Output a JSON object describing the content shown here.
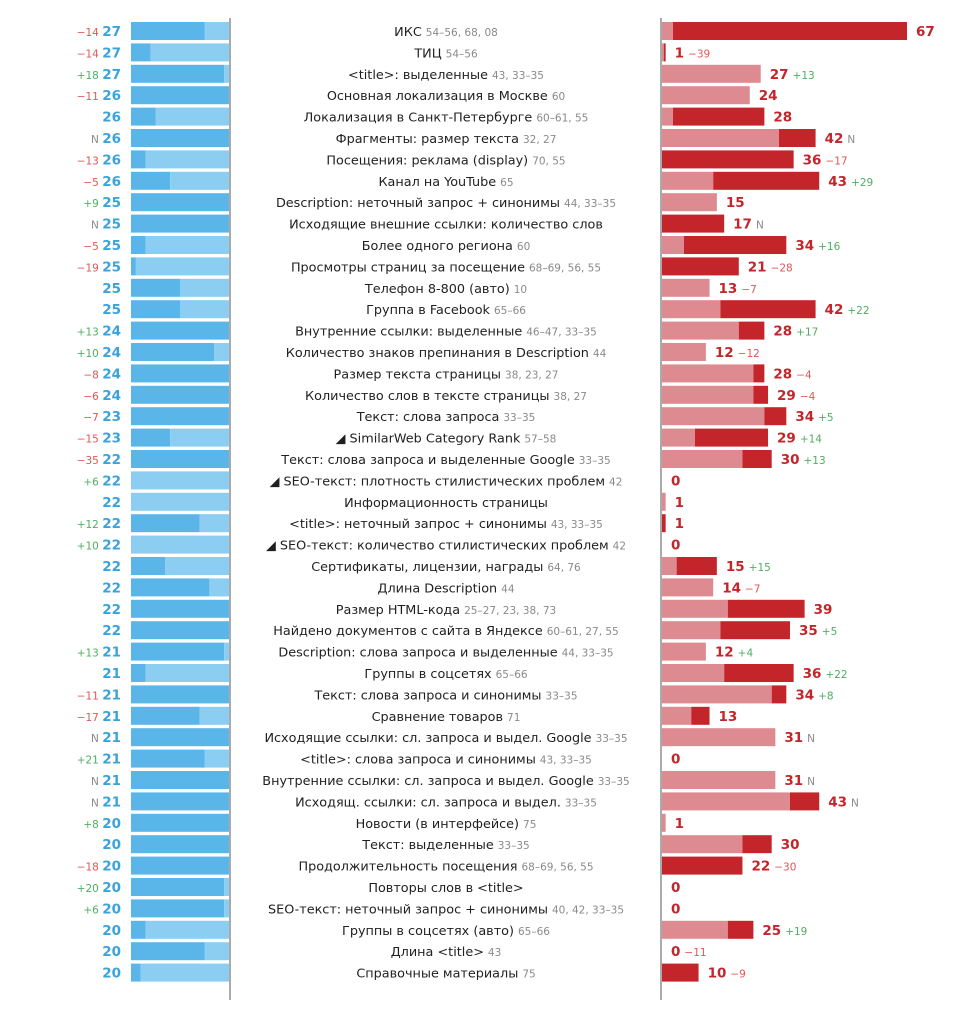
{
  "chart_data": {
    "type": "bar",
    "title": "",
    "left_scale_max": 27,
    "right_scale_max": 67,
    "colors": {
      "left_dark": "#5ab6e9",
      "left_light": "#8ccdf2",
      "left_pale": "#d3ebf8",
      "right_dark": "#c4252b",
      "right_light": "#de8a91",
      "right_pale": "#f1d4d6",
      "axis": "#555555"
    },
    "rows": [
      {
        "label": "ИКС",
        "refs": "54–56, 68, 08",
        "left_value": "27",
        "left_change": "−14",
        "left_change_sign": "neg",
        "right_value": "67",
        "right_change": "",
        "right_change_sign": "",
        "left_dark_frac": 0.75,
        "left_light_frac": 0.25,
        "right_light": 3,
        "right_dark": 64
      },
      {
        "label": "ТИЦ",
        "refs": "54–56",
        "left_value": "27",
        "left_change": "−14",
        "left_change_sign": "neg",
        "right_value": "1",
        "right_change": "−39",
        "right_change_sign": "neg",
        "left_dark_frac": 0.2,
        "left_light_frac": 0.8,
        "right_light": 0.5,
        "right_dark": 0.5
      },
      {
        "label": "<title>: выделенные",
        "refs": "43, 33–35",
        "left_value": "27",
        "left_change": "+18",
        "left_change_sign": "pos",
        "right_value": "27",
        "right_change": "+13",
        "right_change_sign": "pos",
        "left_dark_frac": 0.95,
        "left_light_frac": 0.05,
        "right_light": 27,
        "right_dark": 0
      },
      {
        "label": "Основная локализация в Москве",
        "refs": "60",
        "left_value": "26",
        "left_change": "−11",
        "left_change_sign": "neg",
        "right_value": "24",
        "right_change": "",
        "right_change_sign": "",
        "left_dark_frac": 1,
        "left_light_frac": 0,
        "right_light": 24,
        "right_dark": 0
      },
      {
        "label": "Локализация в Санкт-Петербурге",
        "refs": "60–61, 55",
        "left_value": "26",
        "left_change": "",
        "left_change_sign": "",
        "right_value": "28",
        "right_change": "",
        "right_change_sign": "",
        "left_dark_frac": 0.25,
        "left_light_frac": 0.75,
        "right_light": 3,
        "right_dark": 25
      },
      {
        "label": "Фрагменты: размер текста",
        "refs": "32, 27",
        "left_value": "26",
        "left_change": "N",
        "left_change_sign": "neu",
        "right_value": "42",
        "right_change": "N",
        "right_change_sign": "neu",
        "left_dark_frac": 1,
        "left_light_frac": 0,
        "right_light": 32,
        "right_dark": 10
      },
      {
        "label": "Посещения: реклама (display)",
        "refs": "70, 55",
        "left_value": "26",
        "left_change": "−13",
        "left_change_sign": "neg",
        "right_value": "36",
        "right_change": "−17",
        "right_change_sign": "neg",
        "left_dark_frac": 0.15,
        "left_light_frac": 0.85,
        "right_light": 0,
        "right_dark": 36
      },
      {
        "label": "Канал на YouTube",
        "refs": "65",
        "left_value": "26",
        "left_change": "−5",
        "left_change_sign": "neg",
        "right_value": "43",
        "right_change": "+29",
        "right_change_sign": "pos",
        "left_dark_frac": 0.4,
        "left_light_frac": 0.6,
        "right_light": 14,
        "right_dark": 29
      },
      {
        "label": "Description: неточный запрос + синонимы",
        "refs": "44, 33–35",
        "left_value": "25",
        "left_change": "+9",
        "left_change_sign": "pos",
        "right_value": "15",
        "right_change": "",
        "right_change_sign": "",
        "left_dark_frac": 1,
        "left_light_frac": 0,
        "right_light": 15,
        "right_dark": 0
      },
      {
        "label": "Исходящие внешние ссылки: количество слов",
        "refs": "",
        "left_value": "25",
        "left_change": "N",
        "left_change_sign": "neu",
        "right_value": "17",
        "right_change": "N",
        "right_change_sign": "neu",
        "left_dark_frac": 1,
        "left_light_frac": 0,
        "right_light": 0,
        "right_dark": 17
      },
      {
        "label": "Более одного региона",
        "refs": "60",
        "left_value": "25",
        "left_change": "−5",
        "left_change_sign": "neg",
        "right_value": "34",
        "right_change": "+16",
        "right_change_sign": "pos",
        "left_dark_frac": 0.15,
        "left_light_frac": 0.85,
        "right_light": 6,
        "right_dark": 28
      },
      {
        "label": "Просмотры страниц за посещение",
        "refs": "68–69, 56, 55",
        "left_value": "25",
        "left_change": "−19",
        "left_change_sign": "neg",
        "right_value": "21",
        "right_change": "−28",
        "right_change_sign": "neg",
        "left_dark_frac": 0.05,
        "left_light_frac": 0.95,
        "right_light": 0,
        "right_dark": 21
      },
      {
        "label": "Телефон 8-800 (авто)",
        "refs": "10",
        "left_value": "25",
        "left_change": "",
        "left_change_sign": "",
        "right_value": "13",
        "right_change": "−7",
        "right_change_sign": "neg",
        "left_dark_frac": 0.5,
        "left_light_frac": 0.5,
        "right_light": 13,
        "right_dark": 0
      },
      {
        "label": "Группа в Facebook",
        "refs": "65–66",
        "left_value": "25",
        "left_change": "",
        "left_change_sign": "",
        "right_value": "42",
        "right_change": "+22",
        "right_change_sign": "pos",
        "left_dark_frac": 0.5,
        "left_light_frac": 0.5,
        "right_light": 16,
        "right_dark": 26
      },
      {
        "label": "Внутренние ссылки: выделенные",
        "refs": "46–47, 33–35",
        "left_value": "24",
        "left_change": "+13",
        "left_change_sign": "pos",
        "right_value": "28",
        "right_change": "+17",
        "right_change_sign": "pos",
        "left_dark_frac": 1,
        "left_light_frac": 0,
        "right_light": 21,
        "right_dark": 7
      },
      {
        "label": "Количество знаков препинания в Description",
        "refs": "44",
        "left_value": "24",
        "left_change": "+10",
        "left_change_sign": "pos",
        "right_value": "12",
        "right_change": "−12",
        "right_change_sign": "neg",
        "left_dark_frac": 0.85,
        "left_light_frac": 0.15,
        "right_light": 12,
        "right_dark": 0
      },
      {
        "label": "Размер текста страницы",
        "refs": "38, 23, 27",
        "left_value": "24",
        "left_change": "−8",
        "left_change_sign": "neg",
        "right_value": "28",
        "right_change": "−4",
        "right_change_sign": "neg",
        "left_dark_frac": 1,
        "left_light_frac": 0,
        "right_light": 25,
        "right_dark": 3
      },
      {
        "label": "Количество слов в тексте страницы",
        "refs": "38, 27",
        "left_value": "24",
        "left_change": "−6",
        "left_change_sign": "neg",
        "right_value": "29",
        "right_change": "−4",
        "right_change_sign": "neg",
        "left_dark_frac": 1,
        "left_light_frac": 0,
        "right_light": 25,
        "right_dark": 4
      },
      {
        "label": "Текст: слова запроса",
        "refs": "33–35",
        "left_value": "23",
        "left_change": "−7",
        "left_change_sign": "neg",
        "right_value": "34",
        "right_change": "+5",
        "right_change_sign": "pos",
        "left_dark_frac": 1,
        "left_light_frac": 0,
        "right_light": 28,
        "right_dark": 6
      },
      {
        "label": "◢ SimilarWeb Category Rank",
        "refs": "57–58",
        "left_value": "23",
        "left_change": "−15",
        "left_change_sign": "neg",
        "right_value": "29",
        "right_change": "+14",
        "right_change_sign": "pos",
        "left_dark_frac": 0.4,
        "left_light_frac": 0.6,
        "right_light": 9,
        "right_dark": 20
      },
      {
        "label": "Текст: слова запроса и выделенные Google",
        "refs": "33–35",
        "left_value": "22",
        "left_change": "−35",
        "left_change_sign": "neg",
        "right_value": "30",
        "right_change": "+13",
        "right_change_sign": "pos",
        "left_dark_frac": 1,
        "left_light_frac": 0,
        "right_light": 22,
        "right_dark": 8
      },
      {
        "label": "◢ SEO-текст: плотность стилистических проблем",
        "refs": "42",
        "left_value": "22",
        "left_change": "+6",
        "left_change_sign": "pos",
        "right_value": "0",
        "right_change": "",
        "right_change_sign": "",
        "left_dark_frac": 0,
        "left_light_frac": 1,
        "right_light": 0,
        "right_dark": 0
      },
      {
        "label": "Информационность страницы",
        "refs": "",
        "left_value": "22",
        "left_change": "",
        "left_change_sign": "",
        "right_value": "1",
        "right_change": "",
        "right_change_sign": "",
        "left_dark_frac": 0,
        "left_light_frac": 1,
        "right_light": 1,
        "right_dark": 0
      },
      {
        "label": "<title>: неточный запрос + синонимы",
        "refs": "43, 33–35",
        "left_value": "22",
        "left_change": "+12",
        "left_change_sign": "pos",
        "right_value": "1",
        "right_change": "",
        "right_change_sign": "",
        "left_dark_frac": 0.7,
        "left_light_frac": 0.3,
        "right_light": 0,
        "right_dark": 1
      },
      {
        "label": "◢ SEO-текст: количество стилистических проблем",
        "refs": "42",
        "left_value": "22",
        "left_change": "+10",
        "left_change_sign": "pos",
        "right_value": "0",
        "right_change": "",
        "right_change_sign": "",
        "left_dark_frac": 0,
        "left_light_frac": 1,
        "right_light": 0,
        "right_dark": 0
      },
      {
        "label": "Сертификаты, лицензии, награды",
        "refs": "64, 76",
        "left_value": "22",
        "left_change": "",
        "left_change_sign": "",
        "right_value": "15",
        "right_change": "+15",
        "right_change_sign": "pos",
        "left_dark_frac": 0.35,
        "left_light_frac": 0.65,
        "right_light": 4,
        "right_dark": 11
      },
      {
        "label": "Длина Description",
        "refs": "44",
        "left_value": "22",
        "left_change": "",
        "left_change_sign": "",
        "right_value": "14",
        "right_change": "−7",
        "right_change_sign": "neg",
        "left_dark_frac": 0.8,
        "left_light_frac": 0.2,
        "right_light": 14,
        "right_dark": 0
      },
      {
        "label": "Размер HTML-кода",
        "refs": "25–27, 23, 38, 73",
        "left_value": "22",
        "left_change": "",
        "left_change_sign": "",
        "right_value": "39",
        "right_change": "",
        "right_change_sign": "",
        "left_dark_frac": 1,
        "left_light_frac": 0,
        "right_light": 18,
        "right_dark": 21
      },
      {
        "label": "Найдено документов с сайта в Яндексе",
        "refs": "60–61, 27, 55",
        "left_value": "22",
        "left_change": "",
        "left_change_sign": "",
        "right_value": "35",
        "right_change": "+5",
        "right_change_sign": "pos",
        "left_dark_frac": 1,
        "left_light_frac": 0,
        "right_light": 16,
        "right_dark": 19
      },
      {
        "label": "Description: слова запроса и выделенные",
        "refs": "44, 33–35",
        "left_value": "21",
        "left_change": "+13",
        "left_change_sign": "pos",
        "right_value": "12",
        "right_change": "+4",
        "right_change_sign": "pos",
        "left_dark_frac": 0.95,
        "left_light_frac": 0.05,
        "right_light": 12,
        "right_dark": 0
      },
      {
        "label": "Группы в соцсетях",
        "refs": "65–66",
        "left_value": "21",
        "left_change": "",
        "left_change_sign": "",
        "right_value": "36",
        "right_change": "+22",
        "right_change_sign": "pos",
        "left_dark_frac": 0.15,
        "left_light_frac": 0.85,
        "right_light": 17,
        "right_dark": 19
      },
      {
        "label": "Текст: слова запроса и синонимы",
        "refs": "33–35",
        "left_value": "21",
        "left_change": "−11",
        "left_change_sign": "neg",
        "right_value": "34",
        "right_change": "+8",
        "right_change_sign": "pos",
        "left_dark_frac": 1,
        "left_light_frac": 0,
        "right_light": 30,
        "right_dark": 4
      },
      {
        "label": "Сравнение товаров",
        "refs": "71",
        "left_value": "21",
        "left_change": "−17",
        "left_change_sign": "neg",
        "right_value": "13",
        "right_change": "",
        "right_change_sign": "",
        "left_dark_frac": 0.7,
        "left_light_frac": 0.3,
        "right_light": 8,
        "right_dark": 5
      },
      {
        "label": "Исходящие ссылки: сл. запроса и выдел. Google",
        "refs": "33–35",
        "left_value": "21",
        "left_change": "N",
        "left_change_sign": "neu",
        "right_value": "31",
        "right_change": "N",
        "right_change_sign": "neu",
        "left_dark_frac": 1,
        "left_light_frac": 0,
        "right_light": 31,
        "right_dark": 0
      },
      {
        "label": "<title>: слова запроса и синонимы",
        "refs": "43, 33–35",
        "left_value": "21",
        "left_change": "+21",
        "left_change_sign": "pos",
        "right_value": "0",
        "right_change": "",
        "right_change_sign": "",
        "left_dark_frac": 0.75,
        "left_light_frac": 0.25,
        "right_light": 0,
        "right_dark": 0
      },
      {
        "label": "Внутренние ссылки: сл. запроса и выдел. Google",
        "refs": "33–35",
        "left_value": "21",
        "left_change": "N",
        "left_change_sign": "neu",
        "right_value": "31",
        "right_change": "N",
        "right_change_sign": "neu",
        "left_dark_frac": 1,
        "left_light_frac": 0,
        "right_light": 31,
        "right_dark": 0
      },
      {
        "label": "Исходящ. ссылки: сл. запроса и выдел.",
        "refs": "33–35",
        "left_value": "21",
        "left_change": "N",
        "left_change_sign": "neu",
        "right_value": "43",
        "right_change": "N",
        "right_change_sign": "neu",
        "left_dark_frac": 1,
        "left_light_frac": 0,
        "right_light": 35,
        "right_dark": 8
      },
      {
        "label": "Новости (в интерфейсе)",
        "refs": "75",
        "left_value": "20",
        "left_change": "+8",
        "left_change_sign": "pos",
        "right_value": "1",
        "right_change": "",
        "right_change_sign": "",
        "left_dark_frac": 1,
        "left_light_frac": 0,
        "right_light": 1,
        "right_dark": 0
      },
      {
        "label": "Текст: выделенные",
        "refs": "33–35",
        "left_value": "20",
        "left_change": "",
        "left_change_sign": "",
        "right_value": "30",
        "right_change": "",
        "right_change_sign": "",
        "left_dark_frac": 1,
        "left_light_frac": 0,
        "right_light": 22,
        "right_dark": 8
      },
      {
        "label": "Продолжительность посещения",
        "refs": "68–69, 56, 55",
        "left_value": "20",
        "left_change": "−18",
        "left_change_sign": "neg",
        "right_value": "22",
        "right_change": "−30",
        "right_change_sign": "neg",
        "left_dark_frac": 1,
        "left_light_frac": 0,
        "right_light": 0,
        "right_dark": 22
      },
      {
        "label": "Повторы слов в <title>",
        "refs": "",
        "left_value": "20",
        "left_change": "+20",
        "left_change_sign": "pos",
        "right_value": "0",
        "right_change": "",
        "right_change_sign": "",
        "left_dark_frac": 0.95,
        "left_light_frac": 0.05,
        "right_light": 0,
        "right_dark": 0
      },
      {
        "label": "SEO-текст: неточный запрос + синонимы",
        "refs": "40, 42, 33–35",
        "left_value": "20",
        "left_change": "+6",
        "left_change_sign": "pos",
        "right_value": "0",
        "right_change": "",
        "right_change_sign": "",
        "left_dark_frac": 0.95,
        "left_light_frac": 0.05,
        "right_light": 0,
        "right_dark": 0
      },
      {
        "label": "Группы в соцсетях (авто)",
        "refs": "65–66",
        "left_value": "20",
        "left_change": "",
        "left_change_sign": "",
        "right_value": "25",
        "right_change": "+19",
        "right_change_sign": "pos",
        "left_dark_frac": 0.15,
        "left_light_frac": 0.85,
        "right_light": 18,
        "right_dark": 7
      },
      {
        "label": "Длина <title>",
        "refs": "43",
        "left_value": "20",
        "left_change": "",
        "left_change_sign": "",
        "right_value": "0",
        "right_change": "−11",
        "right_change_sign": "neg",
        "left_dark_frac": 0.75,
        "left_light_frac": 0.25,
        "right_light": 0,
        "right_dark": 0
      },
      {
        "label": "Справочные материалы",
        "refs": "75",
        "left_value": "20",
        "left_change": "",
        "left_change_sign": "",
        "right_value": "10",
        "right_change": "−9",
        "right_change_sign": "neg",
        "left_dark_frac": 0.1,
        "left_light_frac": 0.9,
        "right_light": 0,
        "right_dark": 10
      }
    ]
  }
}
